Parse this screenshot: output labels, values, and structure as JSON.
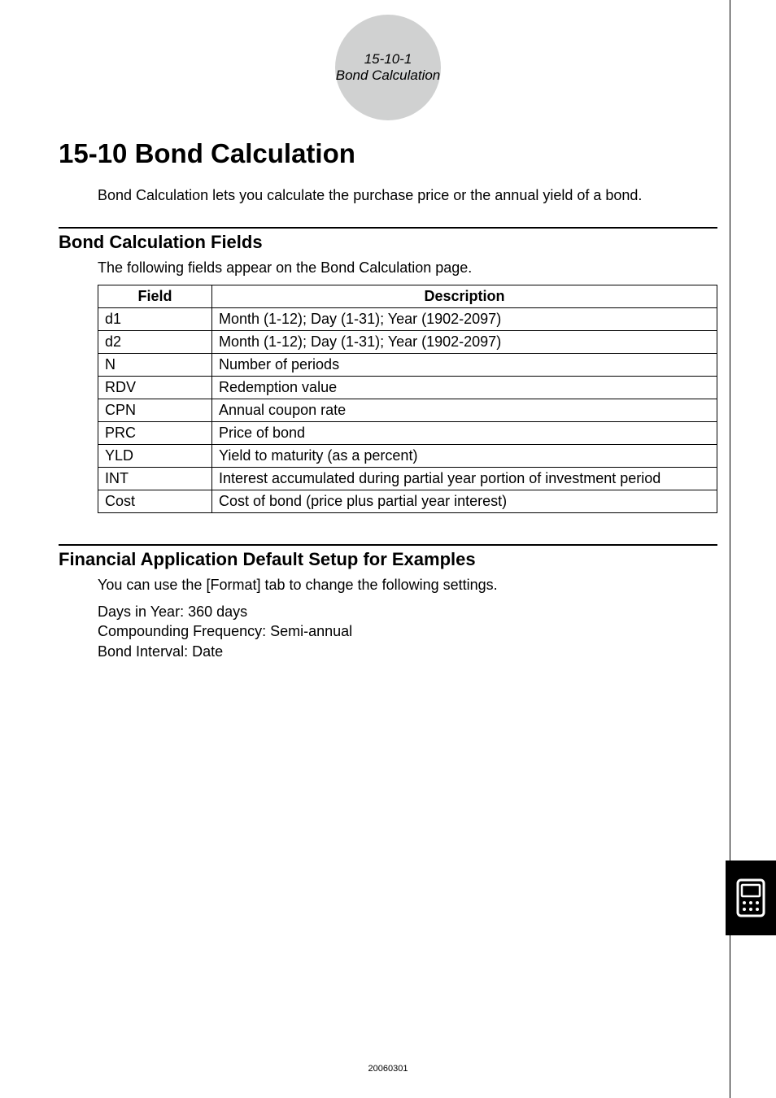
{
  "header": {
    "line1": "15-10-1",
    "line2": "Bond Calculation"
  },
  "title": "15-10  Bond Calculation",
  "intro": "Bond Calculation lets you calculate the purchase price or the annual yield of a bond.",
  "fields_section": {
    "heading": "Bond Calculation Fields",
    "subtext": "The following fields appear on the Bond Calculation page.",
    "table": {
      "columns": [
        "Field",
        "Description"
      ],
      "rows": [
        [
          "d1",
          "Month (1-12); Day (1-31); Year (1902-2097)"
        ],
        [
          "d2",
          "Month (1-12); Day (1-31); Year (1902-2097)"
        ],
        [
          "N",
          "Number of periods"
        ],
        [
          "RDV",
          "Redemption value"
        ],
        [
          "CPN",
          "Annual coupon rate"
        ],
        [
          "PRC",
          "Price of bond"
        ],
        [
          "YLD",
          "Yield to maturity (as a percent)"
        ],
        [
          "INT",
          "Interest accumulated during partial year portion of investment period"
        ],
        [
          "Cost",
          "Cost of bond (price plus partial year interest)"
        ]
      ],
      "header_fontsize": 18,
      "cell_fontsize": 18,
      "border_color": "#000000"
    }
  },
  "defaults_section": {
    "heading": "Financial Application Default Setup for Examples",
    "subtext": "You can use the [Format] tab to change the following settings.",
    "settings": [
      "Days in Year: 360 days",
      "Compounding Frequency: Semi-annual",
      "Bond Interval: Date"
    ]
  },
  "footer": "20060301",
  "colors": {
    "circle_bg": "#d0d1d1",
    "page_bg": "#ffffff",
    "text": "#000000",
    "rule": "#000000",
    "icon_bg": "#000000",
    "icon_fg": "#ffffff"
  },
  "side_icon": "calculator-icon"
}
